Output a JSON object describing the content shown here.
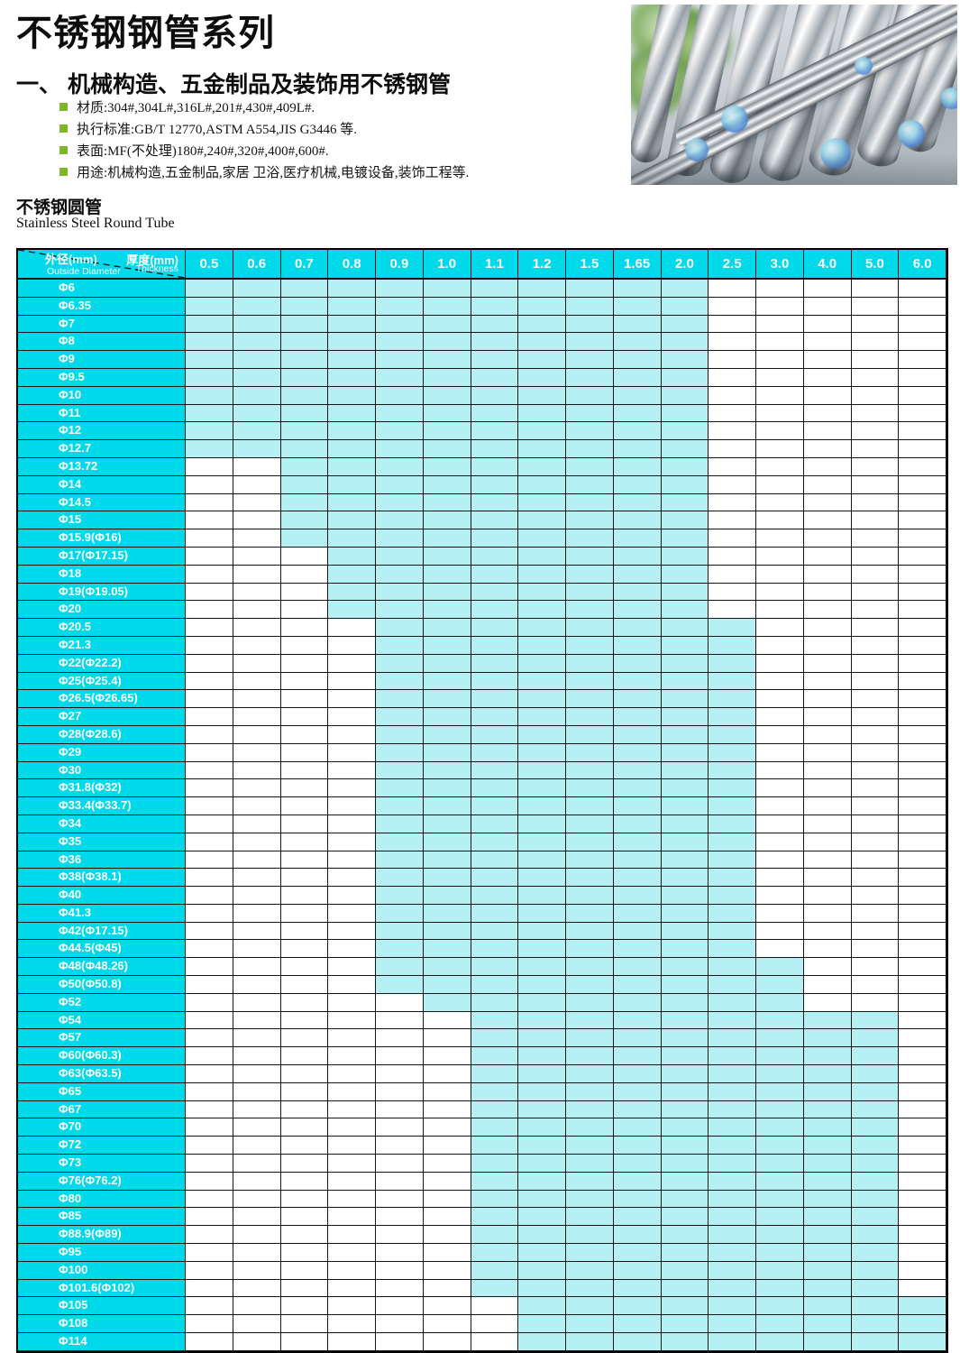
{
  "page": {
    "title": "不锈钢钢管系列",
    "section_heading": "一、 机械构造、五金制品及装饰用不锈钢管",
    "bullets": [
      "材质:304#,304L#,316L#,201#,430#,409L#.",
      "执行标准:GB/T 12770,ASTM A554,JIS G3446 等.",
      "表面:MF(不处理)180#,240#,320#,400#,600#.",
      "用途:机械构造,五金制品,家居 卫浴,医疗机械,电镀设备,装饰工程等."
    ],
    "product_cn": "不锈钢圆管",
    "product_en": "Stainless Steel Round Tube"
  },
  "photo": {
    "description": "polished stainless steel round tubes with blue labels and green foliage"
  },
  "table": {
    "corner": {
      "thickness_cn": "厚度(mm)",
      "thickness_en": "Thickness",
      "diameter_cn": "外径(mm)",
      "diameter_en": "Outside Diameter"
    },
    "thickness_mm": [
      "0.5",
      "0.6",
      "0.7",
      "0.8",
      "0.9",
      "1.0",
      "1.1",
      "1.2",
      "1.5",
      "1.65",
      "2.0",
      "2.5",
      "3.0",
      "4.0",
      "5.0",
      "6.0"
    ],
    "rows": [
      {
        "od": "Φ6",
        "from": "0.5",
        "to": "2.0"
      },
      {
        "od": "Φ6.35",
        "from": "0.5",
        "to": "2.0"
      },
      {
        "od": "Φ7",
        "from": "0.5",
        "to": "2.0"
      },
      {
        "od": "Φ8",
        "from": "0.5",
        "to": "2.0"
      },
      {
        "od": "Φ9",
        "from": "0.5",
        "to": "2.0"
      },
      {
        "od": "Φ9.5",
        "from": "0.5",
        "to": "2.0"
      },
      {
        "od": "Φ10",
        "from": "0.5",
        "to": "2.0"
      },
      {
        "od": "Φ11",
        "from": "0.5",
        "to": "2.0"
      },
      {
        "od": "Φ12",
        "from": "0.5",
        "to": "2.0"
      },
      {
        "od": "Φ12.7",
        "from": "0.5",
        "to": "2.0"
      },
      {
        "od": "Φ13.72",
        "from": "0.7",
        "to": "2.0"
      },
      {
        "od": "Φ14",
        "from": "0.7",
        "to": "2.0"
      },
      {
        "od": "Φ14.5",
        "from": "0.7",
        "to": "2.0"
      },
      {
        "od": "Φ15",
        "from": "0.7",
        "to": "2.0"
      },
      {
        "od": "Φ15.9(Φ16)",
        "from": "0.7",
        "to": "2.0"
      },
      {
        "od": "Φ17(Φ17.15)",
        "from": "0.8",
        "to": "2.0"
      },
      {
        "od": "Φ18",
        "from": "0.8",
        "to": "2.0"
      },
      {
        "od": "Φ19(Φ19.05)",
        "from": "0.8",
        "to": "2.0"
      },
      {
        "od": "Φ20",
        "from": "0.8",
        "to": "2.0"
      },
      {
        "od": "Φ20.5",
        "from": "0.9",
        "to": "2.5"
      },
      {
        "od": "Φ21.3",
        "from": "0.9",
        "to": "2.5"
      },
      {
        "od": "Φ22(Φ22.2)",
        "from": "0.9",
        "to": "2.5"
      },
      {
        "od": "Φ25(Φ25.4)",
        "from": "0.9",
        "to": "2.5"
      },
      {
        "od": "Φ26.5(Φ26.65)",
        "from": "0.9",
        "to": "2.5"
      },
      {
        "od": "Φ27",
        "from": "0.9",
        "to": "2.5"
      },
      {
        "od": "Φ28(Φ28.6)",
        "from": "0.9",
        "to": "2.5"
      },
      {
        "od": "Φ29",
        "from": "0.9",
        "to": "2.5"
      },
      {
        "od": "Φ30",
        "from": "0.9",
        "to": "2.5"
      },
      {
        "od": "Φ31.8(Φ32)",
        "from": "0.9",
        "to": "2.5"
      },
      {
        "od": "Φ33.4(Φ33.7)",
        "from": "0.9",
        "to": "2.5"
      },
      {
        "od": "Φ34",
        "from": "0.9",
        "to": "2.5"
      },
      {
        "od": "Φ35",
        "from": "0.9",
        "to": "2.5"
      },
      {
        "od": "Φ36",
        "from": "0.9",
        "to": "2.5"
      },
      {
        "od": "Φ38(Φ38.1)",
        "from": "0.9",
        "to": "2.5"
      },
      {
        "od": "Φ40",
        "from": "0.9",
        "to": "2.5"
      },
      {
        "od": "Φ41.3",
        "from": "0.9",
        "to": "2.5"
      },
      {
        "od": "Φ42(Φ17.15)",
        "from": "0.9",
        "to": "2.5"
      },
      {
        "od": "Φ44.5(Φ45)",
        "from": "0.9",
        "to": "2.5"
      },
      {
        "od": "Φ48(Φ48.26)",
        "from": "0.9",
        "to": "3.0"
      },
      {
        "od": "Φ50(Φ50.8)",
        "from": "0.9",
        "to": "3.0"
      },
      {
        "od": "Φ52",
        "from": "1.0",
        "to": "3.0"
      },
      {
        "od": "Φ54",
        "from": "1.1",
        "to": "5.0"
      },
      {
        "od": "Φ57",
        "from": "1.1",
        "to": "5.0"
      },
      {
        "od": "Φ60(Φ60.3)",
        "from": "1.1",
        "to": "5.0"
      },
      {
        "od": "Φ63(Φ63.5)",
        "from": "1.1",
        "to": "5.0"
      },
      {
        "od": "Φ65",
        "from": "1.1",
        "to": "5.0"
      },
      {
        "od": "Φ67",
        "from": "1.1",
        "to": "5.0"
      },
      {
        "od": "Φ70",
        "from": "1.1",
        "to": "5.0"
      },
      {
        "od": "Φ72",
        "from": "1.1",
        "to": "5.0"
      },
      {
        "od": "Φ73",
        "from": "1.1",
        "to": "5.0"
      },
      {
        "od": "Φ76(Φ76.2)",
        "from": "1.1",
        "to": "5.0"
      },
      {
        "od": "Φ80",
        "from": "1.1",
        "to": "5.0"
      },
      {
        "od": "Φ85",
        "from": "1.1",
        "to": "5.0"
      },
      {
        "od": "Φ88.9(Φ89)",
        "from": "1.1",
        "to": "5.0"
      },
      {
        "od": "Φ95",
        "from": "1.1",
        "to": "5.0"
      },
      {
        "od": "Φ100",
        "from": "1.1",
        "to": "5.0"
      },
      {
        "od": "Φ101.6(Φ102)",
        "from": "1.1",
        "to": "5.0"
      },
      {
        "od": "Φ105",
        "from": "1.2",
        "to": "6.0"
      },
      {
        "od": "Φ108",
        "from": "1.2",
        "to": "6.0"
      },
      {
        "od": "Φ114",
        "from": "1.2",
        "to": "6.0"
      }
    ]
  },
  "colors": {
    "header_cyan": "#00d9ea",
    "cell_cyan": "#b5f1f4",
    "bullet_green": "#7db728",
    "grid_line": "#161616",
    "text": "#0d0d0d"
  }
}
